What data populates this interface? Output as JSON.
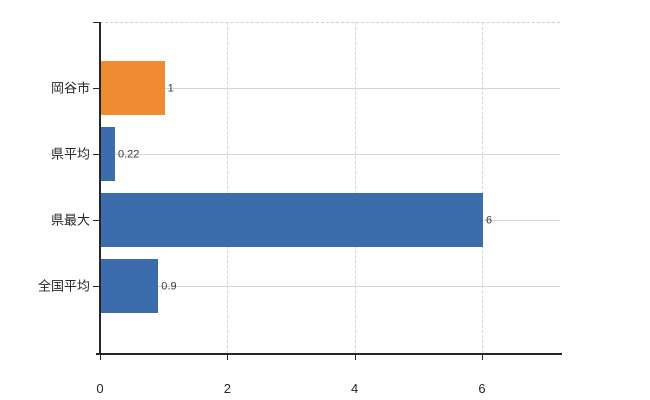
{
  "chart_data": {
    "type": "bar",
    "orientation": "horizontal",
    "categories": [
      "岡谷市",
      "県平均",
      "県最大",
      "全国平均"
    ],
    "values": [
      1,
      0.22,
      6,
      0.9
    ],
    "value_labels": [
      "1",
      "0.22",
      "6",
      "0.9"
    ],
    "bar_colors": [
      "#ef8b33",
      "#3c6cab",
      "#3c6cab",
      "#3c6cab"
    ],
    "highlight_color": "#ef8b33",
    "series_color": "#3c6cab",
    "x_ticks": [
      0,
      2,
      4,
      6
    ],
    "x_tick_labels": [
      "0",
      "2",
      "4",
      "6"
    ],
    "xlim": [
      0,
      7.25
    ],
    "grid": true,
    "gridline_color": "#d6d6d6",
    "axis_color": "#262626",
    "background_color": "#ffffff",
    "title": "",
    "legend": null
  }
}
